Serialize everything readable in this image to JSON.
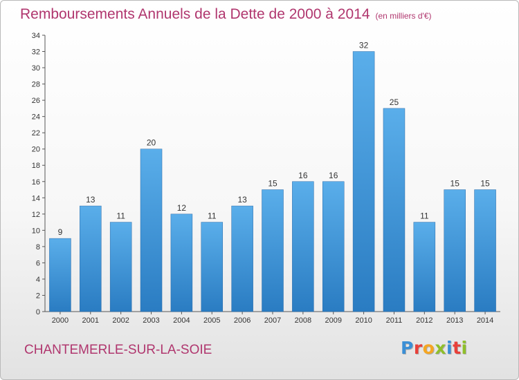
{
  "header": {
    "title": "Remboursements Annuels de la Dette de 2000 à 2014",
    "unit": "(en milliers d'€)"
  },
  "footer": {
    "commune": "CHANTEMERLE-SUR-LA-SOIE",
    "logo": "Proxiti",
    "logo_letters": [
      {
        "char": "P",
        "color": "#3a8fd6"
      },
      {
        "char": "r",
        "color": "#e8403a"
      },
      {
        "char": "o",
        "color": "#f5a623"
      },
      {
        "char": "x",
        "color": "#8fbf2a"
      },
      {
        "char": "i",
        "color": "#3a8fd6"
      },
      {
        "char": "t",
        "color": "#e8403a"
      },
      {
        "char": "i",
        "color": "#8fbf2a"
      }
    ]
  },
  "colors": {
    "bar_top": "#5aaeea",
    "bar_bottom": "#2a7cc2",
    "title": "#b0366e"
  },
  "chart_data": {
    "type": "bar",
    "title": "Remboursements Annuels de la Dette de 2000 à 2014",
    "subtitle": "(en milliers d'€)",
    "xlabel": "",
    "ylabel": "",
    "categories": [
      "2000",
      "2001",
      "2002",
      "2003",
      "2004",
      "2005",
      "2006",
      "2007",
      "2008",
      "2009",
      "2010",
      "2011",
      "2012",
      "2013",
      "2014"
    ],
    "values": [
      9,
      13,
      11,
      20,
      12,
      11,
      13,
      15,
      16,
      16,
      32,
      25,
      11,
      15,
      15
    ],
    "ylim": [
      0,
      34
    ],
    "yticks": [
      0,
      2,
      4,
      6,
      8,
      10,
      12,
      14,
      16,
      18,
      20,
      22,
      24,
      26,
      28,
      30,
      32,
      34
    ],
    "grid": false,
    "legend": "none"
  }
}
